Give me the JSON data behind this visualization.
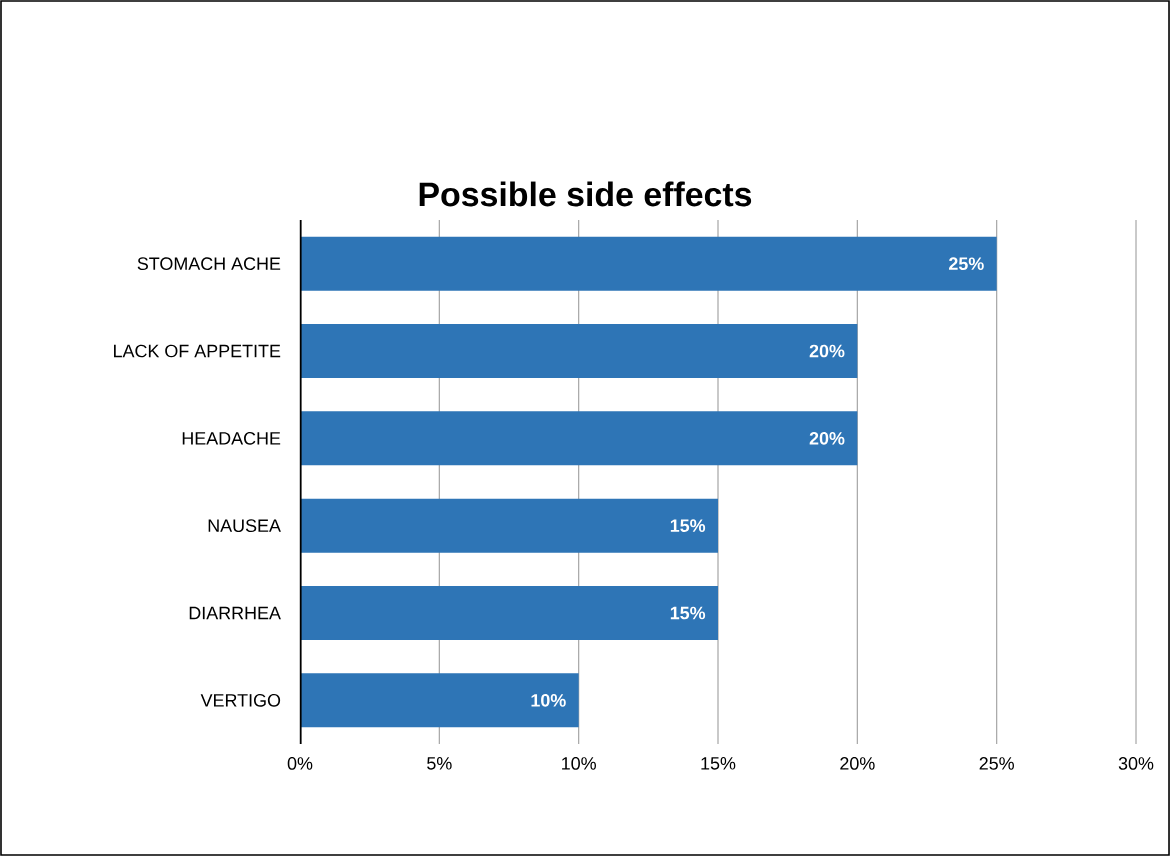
{
  "chart_data": {
    "type": "bar",
    "orientation": "horizontal",
    "title": "Possible side effects",
    "categories": [
      "STOMACH ACHE",
      "LACK OF APPETITE",
      "HEADACHE",
      "NAUSEA",
      "DIARRHEA",
      "VERTIGO"
    ],
    "values": [
      25,
      20,
      20,
      15,
      15,
      10
    ],
    "value_labels": [
      "25%",
      "20%",
      "20%",
      "15%",
      "15%",
      "10%"
    ],
    "color": "#2e75b6",
    "xlim": [
      0,
      30
    ],
    "xticks": [
      {
        "value": 0,
        "label": "0%"
      },
      {
        "value": 5,
        "label": "5%"
      },
      {
        "value": 10,
        "label": "10%"
      },
      {
        "value": 15,
        "label": "15%"
      },
      {
        "value": 20,
        "label": "20%"
      },
      {
        "value": 25,
        "label": "25%"
      },
      {
        "value": 30,
        "label": "30%"
      }
    ],
    "grid": "x"
  }
}
